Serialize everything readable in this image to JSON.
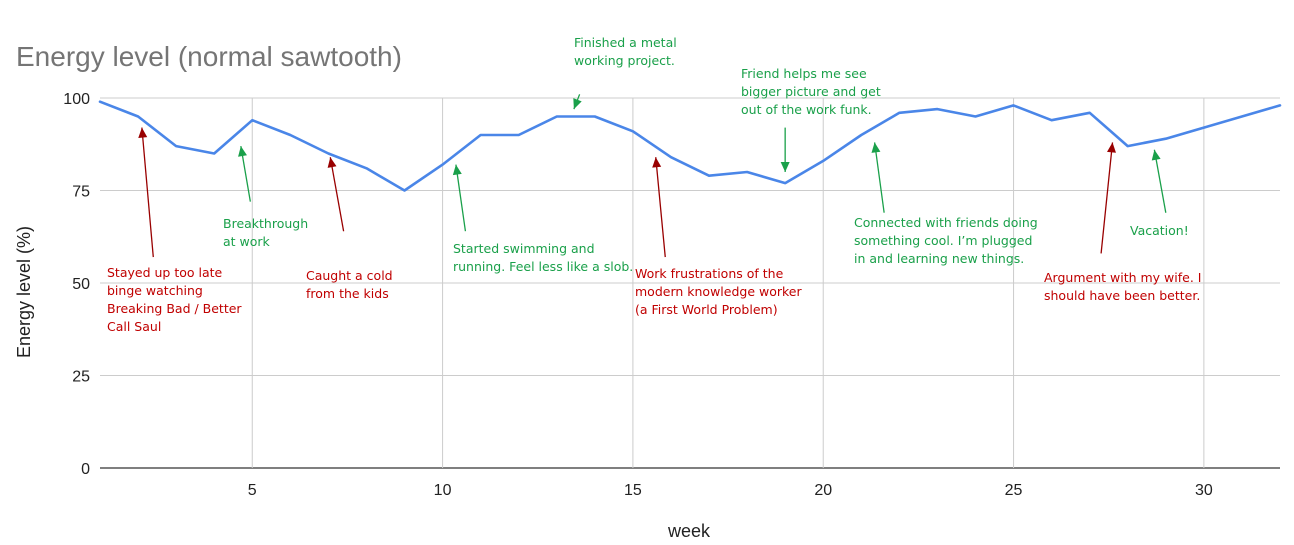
{
  "chart_data": {
    "type": "line",
    "title": "Energy level (normal sawtooth)",
    "xlabel": "week",
    "ylabel": "Energy level (%)",
    "xlim": [
      1,
      32
    ],
    "ylim": [
      0,
      100
    ],
    "x_ticks": [
      5,
      10,
      15,
      20,
      25,
      30
    ],
    "y_ticks": [
      0,
      25,
      50,
      75,
      100
    ],
    "grid": true,
    "legend": "none",
    "series": [
      {
        "color": "#4a86e8",
        "x": [
          1,
          2,
          3,
          4,
          5,
          6,
          7,
          8,
          9,
          10,
          11,
          12,
          13,
          14,
          15,
          16,
          17,
          18,
          19,
          20,
          21,
          22,
          23,
          24,
          25,
          26,
          27,
          28,
          29,
          30,
          31,
          32
        ],
        "y": [
          99,
          95,
          87,
          85,
          94,
          90,
          85,
          81,
          75,
          82,
          90,
          90,
          95,
          95,
          91,
          84,
          79,
          80,
          77,
          83,
          90,
          96,
          97,
          95,
          98,
          94,
          96,
          87,
          89,
          92,
          95,
          98
        ]
      }
    ],
    "annotations": [
      {
        "kind": "low",
        "lines": [
          "Stayed up too late",
          "binge watching",
          "Breaking Bad / Better",
          "Call Saul"
        ],
        "arrow_x": 2.1,
        "arrow_y": 92,
        "tail_x": 2.4,
        "tail_y": 57
      },
      {
        "kind": "high",
        "lines": [
          "Breakthrough",
          "at work"
        ],
        "arrow_x": 4.7,
        "arrow_y": 87,
        "tail_x": 4.95,
        "tail_y": 72
      },
      {
        "kind": "low",
        "lines": [
          "Caught a cold",
          "from the kids"
        ],
        "arrow_x": 7.05,
        "arrow_y": 84,
        "tail_x": 7.4,
        "tail_y": 64
      },
      {
        "kind": "high",
        "lines": [
          "Started swimming and",
          "running. Feel less like a slob."
        ],
        "arrow_x": 10.35,
        "arrow_y": 82,
        "tail_x": 10.6,
        "tail_y": 64
      },
      {
        "kind": "high",
        "lines": [
          "Finished a metal",
          "working project."
        ],
        "arrow_x": 13.45,
        "arrow_y": 97,
        "tail_x": 13.6,
        "tail_y": 101
      },
      {
        "kind": "low",
        "lines": [
          "Work frustrations of the",
          "modern knowledge worker",
          "(a First World Problem)"
        ],
        "arrow_x": 15.6,
        "arrow_y": 84,
        "tail_x": 15.85,
        "tail_y": 57
      },
      {
        "kind": "high",
        "lines": [
          "Friend helps me see",
          "bigger picture and get",
          "out of the work funk."
        ],
        "arrow_x": 19.0,
        "arrow_y": 80,
        "tail_x": 19.0,
        "tail_y": 92
      },
      {
        "kind": "high",
        "lines": [
          "Connected with friends doing",
          "something cool. I’m plugged",
          "in and learning new things."
        ],
        "arrow_x": 21.35,
        "arrow_y": 88,
        "tail_x": 21.6,
        "tail_y": 69
      },
      {
        "kind": "low",
        "lines": [
          "Argument with my wife. I",
          "should have been better."
        ],
        "arrow_x": 27.6,
        "arrow_y": 88,
        "tail_x": 27.3,
        "tail_y": 58
      },
      {
        "kind": "high",
        "lines": [
          "Vacation!"
        ],
        "arrow_x": 28.7,
        "arrow_y": 86,
        "tail_x": 29.0,
        "tail_y": 69
      }
    ]
  },
  "colors": {
    "high": "#1aa04a",
    "low": "#c00000",
    "low_arrow": "#990000",
    "grid": "#cccccc"
  }
}
